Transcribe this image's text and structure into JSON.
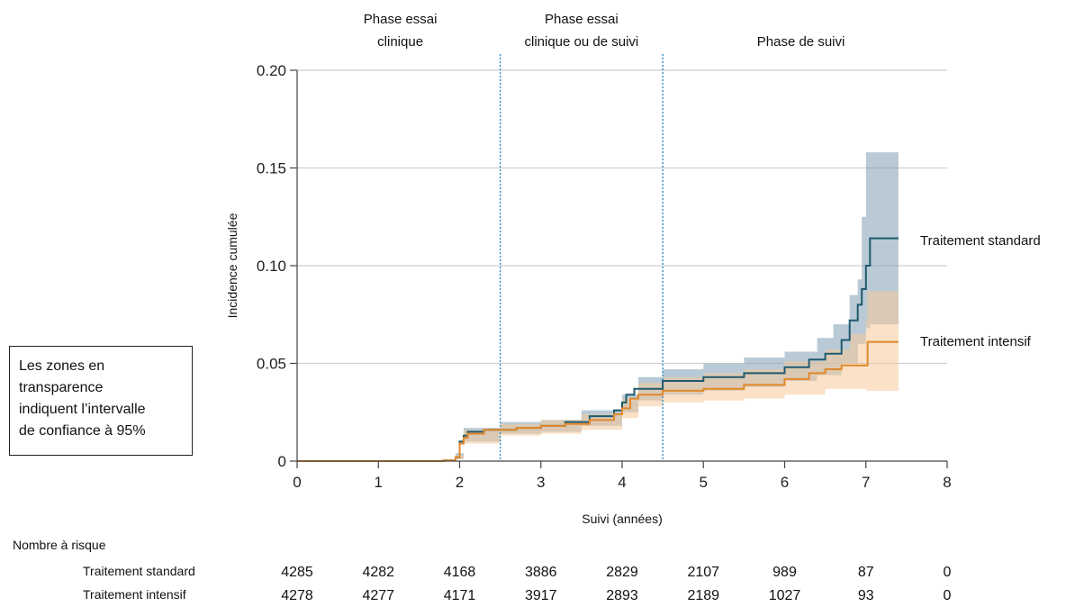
{
  "chart_data": {
    "type": "line",
    "subtype": "step",
    "xlabel": "Suivi (années)",
    "ylabel": "Incidence cumulée",
    "xlim": [
      0,
      8
    ],
    "ylim": [
      0,
      0.2
    ],
    "x_ticks": [
      "0",
      "1",
      "2",
      "3",
      "4",
      "5",
      "6",
      "7",
      "8"
    ],
    "y_ticks": [
      "0",
      "0.05",
      "0.10",
      "0.15",
      "0.20"
    ],
    "y_tick_values": [
      0,
      0.05,
      0.1,
      0.15,
      0.2
    ],
    "grid": "horizontal",
    "phase_dividers": [
      2.5,
      4.5
    ],
    "phases": [
      {
        "label_line1": "Phase essai",
        "label_line2": "clinique",
        "center_x": 1.27
      },
      {
        "label_line1": "Phase essai",
        "label_line2": "clinique ou de suivi",
        "center_x": 3.5
      },
      {
        "label_line1": "Phase de suivi",
        "label_line2": "",
        "center_x": 6.2
      }
    ],
    "series": [
      {
        "name": "Traitement standard",
        "color": "#1f5a6e",
        "band_color": "#7f9fb4",
        "points": [
          [
            0,
            0
          ],
          [
            0.6,
            0
          ],
          [
            1.8,
            0.0003
          ],
          [
            1.95,
            0.002
          ],
          [
            2.0,
            0.01
          ],
          [
            2.05,
            0.013
          ],
          [
            2.1,
            0.015
          ],
          [
            2.3,
            0.016
          ],
          [
            2.7,
            0.017
          ],
          [
            3.0,
            0.018
          ],
          [
            3.3,
            0.02
          ],
          [
            3.6,
            0.023
          ],
          [
            3.9,
            0.026
          ],
          [
            4.0,
            0.03
          ],
          [
            4.05,
            0.034
          ],
          [
            4.15,
            0.037
          ],
          [
            4.5,
            0.041
          ],
          [
            5.0,
            0.043
          ],
          [
            5.5,
            0.045
          ],
          [
            6.0,
            0.048
          ],
          [
            6.3,
            0.052
          ],
          [
            6.5,
            0.055
          ],
          [
            6.7,
            0.062
          ],
          [
            6.8,
            0.072
          ],
          [
            6.9,
            0.08
          ],
          [
            6.95,
            0.088
          ],
          [
            7.0,
            0.1
          ],
          [
            7.05,
            0.114
          ],
          [
            7.4,
            0.114
          ]
        ],
        "lower": [
          [
            0,
            0
          ],
          [
            1.95,
            0.001
          ],
          [
            2.05,
            0.01
          ],
          [
            2.5,
            0.014
          ],
          [
            3.0,
            0.015
          ],
          [
            3.5,
            0.018
          ],
          [
            4.0,
            0.025
          ],
          [
            4.2,
            0.031
          ],
          [
            4.5,
            0.034
          ],
          [
            5.0,
            0.036
          ],
          [
            5.5,
            0.038
          ],
          [
            6.0,
            0.041
          ],
          [
            6.4,
            0.044
          ],
          [
            6.7,
            0.05
          ],
          [
            6.9,
            0.06
          ],
          [
            7.0,
            0.068
          ],
          [
            7.05,
            0.07
          ],
          [
            7.4,
            0.07
          ]
        ],
        "upper": [
          [
            0,
            0
          ],
          [
            1.95,
            0.004
          ],
          [
            2.05,
            0.017
          ],
          [
            2.5,
            0.02
          ],
          [
            3.0,
            0.021
          ],
          [
            3.5,
            0.026
          ],
          [
            4.0,
            0.034
          ],
          [
            4.2,
            0.043
          ],
          [
            4.5,
            0.047
          ],
          [
            5.0,
            0.05
          ],
          [
            5.5,
            0.053
          ],
          [
            6.0,
            0.056
          ],
          [
            6.4,
            0.063
          ],
          [
            6.6,
            0.07
          ],
          [
            6.8,
            0.085
          ],
          [
            6.9,
            0.093
          ],
          [
            6.95,
            0.125
          ],
          [
            7.0,
            0.158
          ],
          [
            7.4,
            0.158
          ]
        ]
      },
      {
        "name": "Traitement intensif",
        "color": "#e0892a",
        "band_color": "#f5c999",
        "points": [
          [
            0,
            0
          ],
          [
            1.8,
            0.0003
          ],
          [
            1.95,
            0.002
          ],
          [
            2.0,
            0.009
          ],
          [
            2.05,
            0.012
          ],
          [
            2.1,
            0.014
          ],
          [
            2.3,
            0.016
          ],
          [
            2.7,
            0.017
          ],
          [
            3.0,
            0.018
          ],
          [
            3.3,
            0.019
          ],
          [
            3.6,
            0.021
          ],
          [
            3.9,
            0.024
          ],
          [
            4.0,
            0.027
          ],
          [
            4.1,
            0.032
          ],
          [
            4.2,
            0.034
          ],
          [
            4.5,
            0.036
          ],
          [
            5.0,
            0.037
          ],
          [
            5.5,
            0.039
          ],
          [
            6.0,
            0.042
          ],
          [
            6.3,
            0.045
          ],
          [
            6.5,
            0.047
          ],
          [
            6.7,
            0.049
          ],
          [
            7.0,
            0.049
          ],
          [
            7.02,
            0.061
          ],
          [
            7.4,
            0.061
          ]
        ],
        "lower": [
          [
            0,
            0
          ],
          [
            1.95,
            0.001
          ],
          [
            2.05,
            0.009
          ],
          [
            2.5,
            0.013
          ],
          [
            3.0,
            0.014
          ],
          [
            3.5,
            0.016
          ],
          [
            4.0,
            0.022
          ],
          [
            4.2,
            0.028
          ],
          [
            4.5,
            0.03
          ],
          [
            5.0,
            0.031
          ],
          [
            5.5,
            0.032
          ],
          [
            6.0,
            0.034
          ],
          [
            6.5,
            0.037
          ],
          [
            7.0,
            0.036
          ],
          [
            7.4,
            0.036
          ]
        ],
        "upper": [
          [
            0,
            0
          ],
          [
            1.95,
            0.003
          ],
          [
            2.05,
            0.016
          ],
          [
            2.5,
            0.019
          ],
          [
            3.0,
            0.021
          ],
          [
            3.5,
            0.024
          ],
          [
            4.0,
            0.032
          ],
          [
            4.2,
            0.04
          ],
          [
            4.5,
            0.043
          ],
          [
            5.0,
            0.045
          ],
          [
            5.5,
            0.047
          ],
          [
            6.0,
            0.051
          ],
          [
            6.5,
            0.057
          ],
          [
            6.8,
            0.065
          ],
          [
            7.0,
            0.072
          ],
          [
            7.02,
            0.087
          ],
          [
            7.4,
            0.087
          ]
        ]
      }
    ]
  },
  "note": {
    "lines": [
      "Les zones en",
      "transparence",
      "indiquent l’intervalle",
      "de confiance à 95%"
    ]
  },
  "risk_table": {
    "title": "Nombre à risque",
    "rows": [
      {
        "label": "Traitement standard",
        "values": [
          "4285",
          "4282",
          "4168",
          "3886",
          "2829",
          "2107",
          "989",
          "87",
          "0"
        ]
      },
      {
        "label": "Traitement intensif",
        "values": [
          "4278",
          "4277",
          "4171",
          "3917",
          "2893",
          "2189",
          "1027",
          "93",
          "0"
        ]
      }
    ]
  }
}
